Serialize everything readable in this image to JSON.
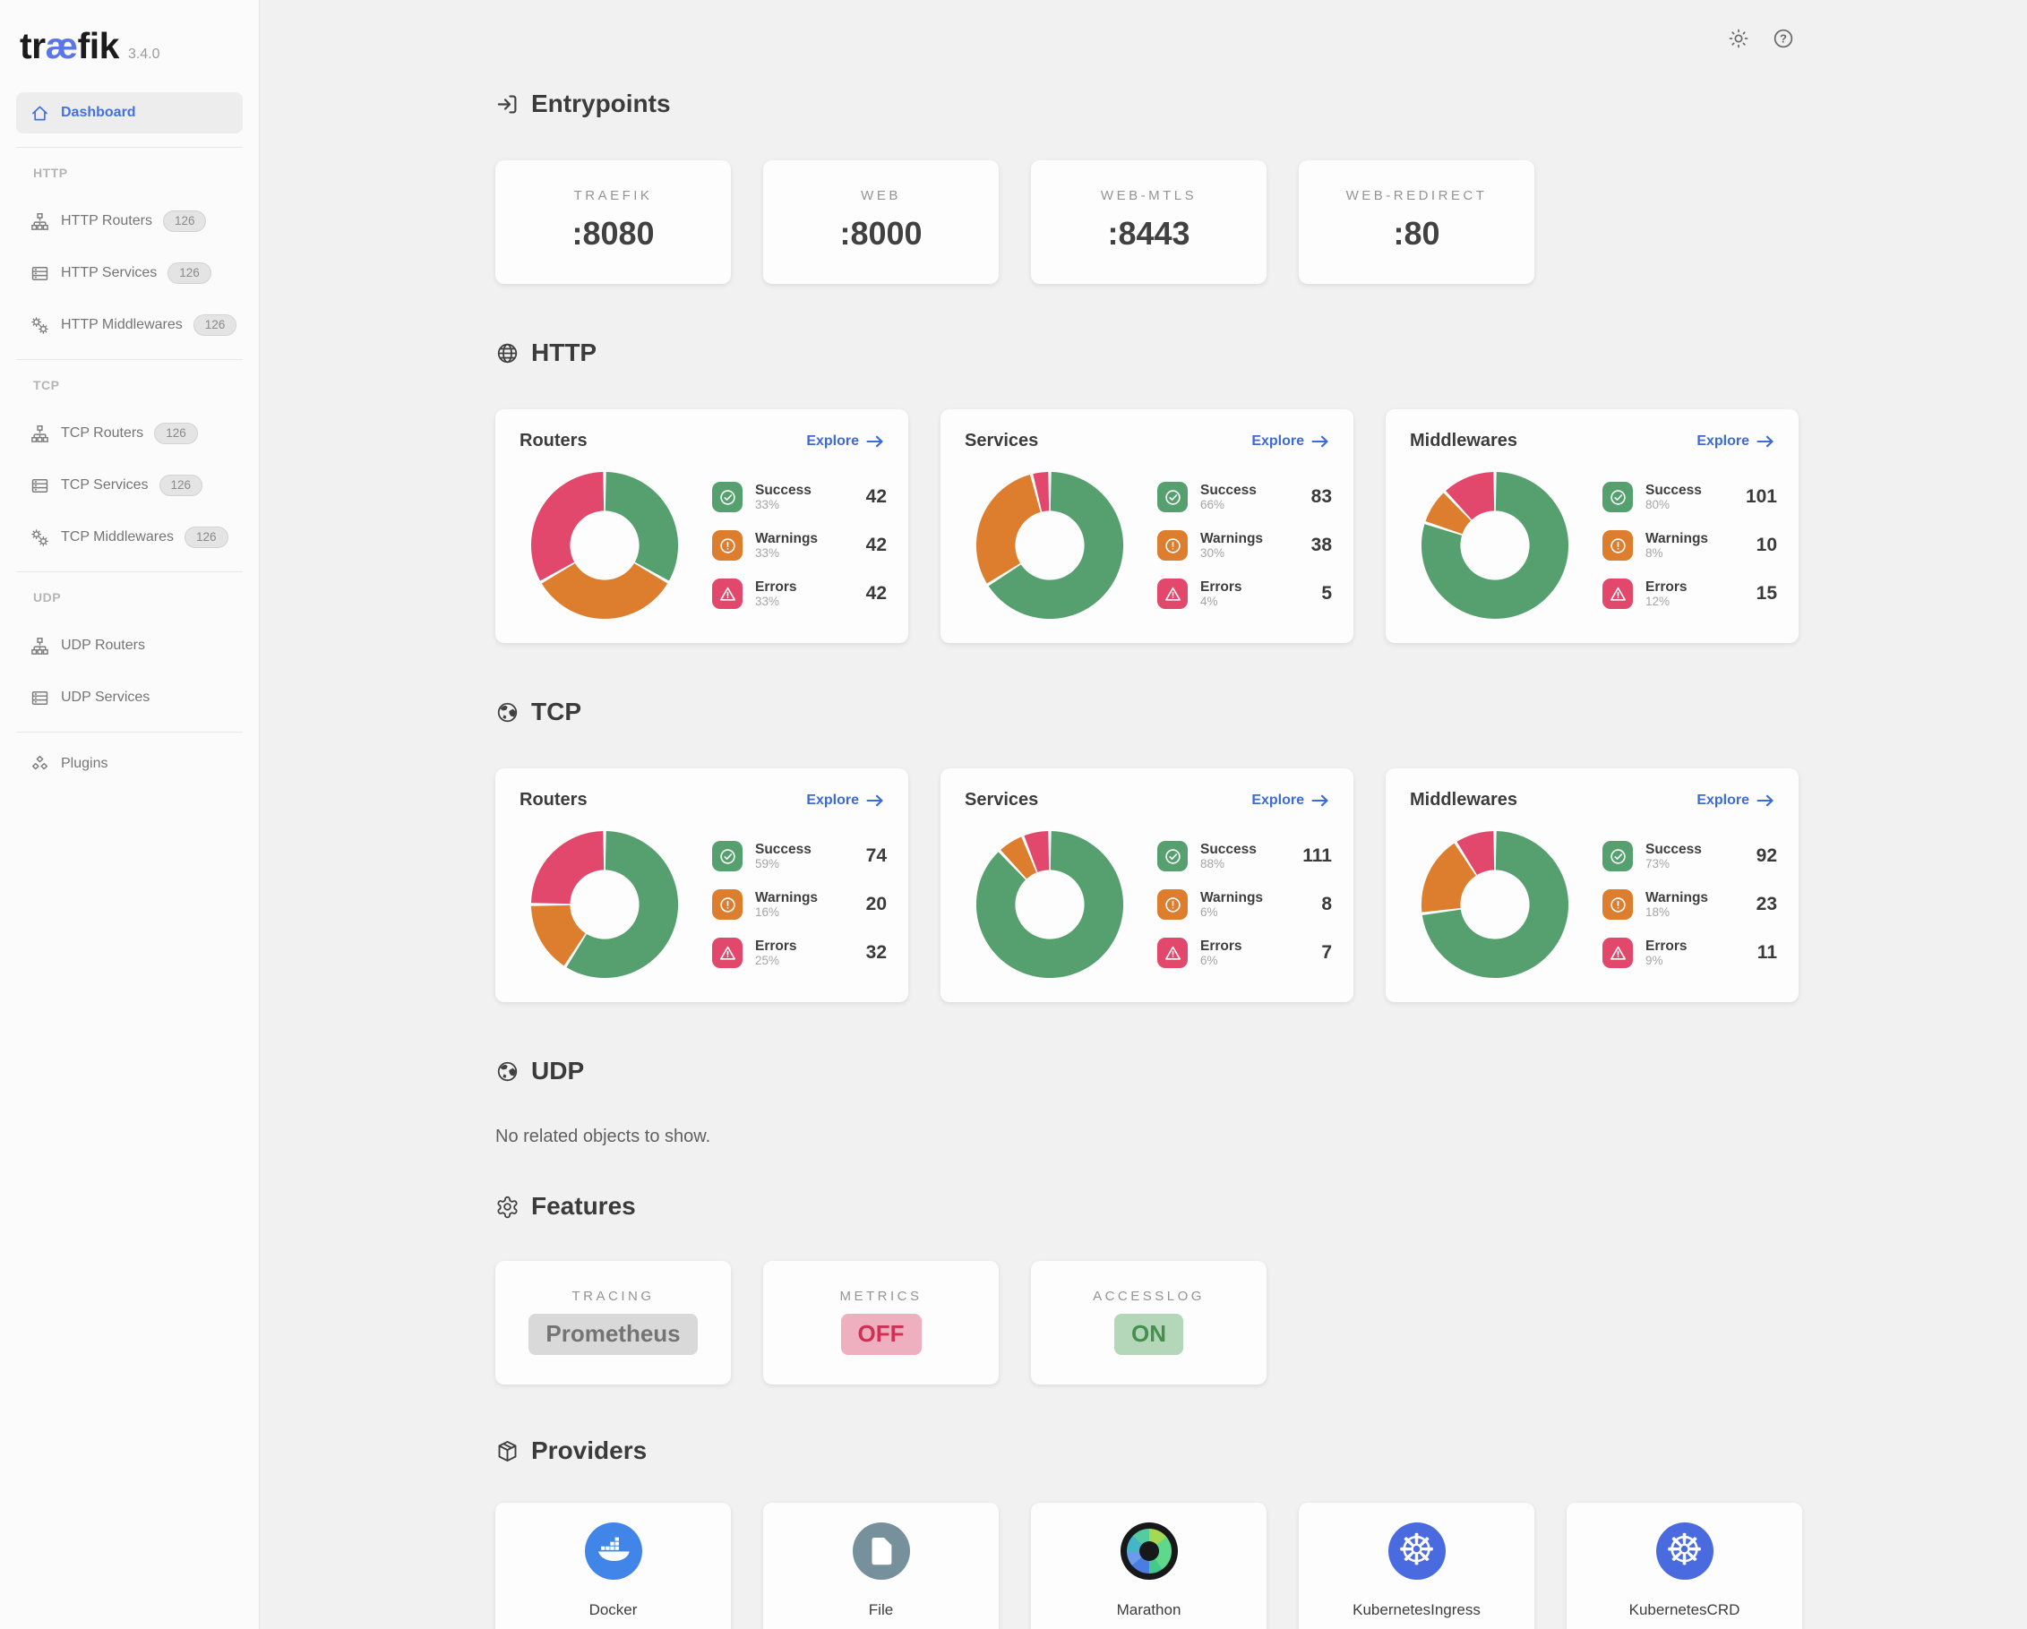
{
  "app": {
    "logo_pre": "tr",
    "logo_ae": "æ",
    "logo_post": "fik",
    "version": "3.4.0"
  },
  "topbar": {
    "icons": [
      "theme-toggle",
      "help"
    ]
  },
  "colors": {
    "accent": "#3c6ad6",
    "logo_ae": "#5b76e8",
    "success": "#55a06e",
    "warning": "#dd7e2f",
    "error": "#e2486b",
    "neutral_badge_bg": "#d9d9d9",
    "neutral_badge_text": "#747474",
    "off_badge_bg": "#eeb0bf",
    "off_badge_text": "#d22f55",
    "on_badge_bg": "#b5d7b9",
    "on_badge_text": "#43914d",
    "docker_blue": "#4285e8",
    "file_slate": "#76909c",
    "kubernetes_blue": "#4a6be0",
    "marathon_black": "#17181a"
  },
  "sidebar": {
    "sections": [
      {
        "label": null,
        "items": [
          {
            "label": "Dashboard",
            "icon": "home",
            "active": true
          }
        ]
      },
      {
        "label": "HTTP",
        "items": [
          {
            "label": "HTTP Routers",
            "icon": "router",
            "badge": "126"
          },
          {
            "label": "HTTP Services",
            "icon": "service",
            "badge": "126"
          },
          {
            "label": "HTTP Middlewares",
            "icon": "middleware",
            "badge": "126"
          }
        ]
      },
      {
        "label": "TCP",
        "items": [
          {
            "label": "TCP Routers",
            "icon": "router",
            "badge": "126"
          },
          {
            "label": "TCP Services",
            "icon": "service",
            "badge": "126"
          },
          {
            "label": "TCP Middlewares",
            "icon": "middleware",
            "badge": "126"
          }
        ]
      },
      {
        "label": "UDP",
        "items": [
          {
            "label": "UDP Routers",
            "icon": "router"
          },
          {
            "label": "UDP Services",
            "icon": "service"
          }
        ]
      },
      {
        "label": null,
        "items": [
          {
            "label": "Plugins",
            "icon": "plugins"
          }
        ]
      }
    ]
  },
  "entrypoints": {
    "title": "Entrypoints",
    "icon": "entrypoints",
    "cards": [
      {
        "label": "TRAEFIK",
        "value": ":8080"
      },
      {
        "label": "WEB",
        "value": ":8000"
      },
      {
        "label": "WEB-MTLS",
        "value": ":8443"
      },
      {
        "label": "WEB-REDIRECT",
        "value": ":80"
      }
    ]
  },
  "protocol_sections": [
    {
      "id": "http",
      "title": "HTTP",
      "icon": "globe-wire",
      "cards": [
        {
          "title": "Routers",
          "explore_label": "Explore",
          "chart_index": 0,
          "rows": [
            {
              "name": "Success",
              "pct": "33%",
              "value": "42"
            },
            {
              "name": "Warnings",
              "pct": "33%",
              "value": "42"
            },
            {
              "name": "Errors",
              "pct": "33%",
              "value": "42"
            }
          ]
        },
        {
          "title": "Services",
          "explore_label": "Explore",
          "chart_index": 1,
          "rows": [
            {
              "name": "Success",
              "pct": "66%",
              "value": "83"
            },
            {
              "name": "Warnings",
              "pct": "30%",
              "value": "38"
            },
            {
              "name": "Errors",
              "pct": "4%",
              "value": "5"
            }
          ]
        },
        {
          "title": "Middlewares",
          "explore_label": "Explore",
          "chart_index": 2,
          "rows": [
            {
              "name": "Success",
              "pct": "80%",
              "value": "101"
            },
            {
              "name": "Warnings",
              "pct": "8%",
              "value": "10"
            },
            {
              "name": "Errors",
              "pct": "12%",
              "value": "15"
            }
          ]
        }
      ]
    },
    {
      "id": "tcp",
      "title": "TCP",
      "icon": "globe-earth",
      "cards": [
        {
          "title": "Routers",
          "explore_label": "Explore",
          "chart_index": 3,
          "rows": [
            {
              "name": "Success",
              "pct": "59%",
              "value": "74"
            },
            {
              "name": "Warnings",
              "pct": "16%",
              "value": "20"
            },
            {
              "name": "Errors",
              "pct": "25%",
              "value": "32"
            }
          ]
        },
        {
          "title": "Services",
          "explore_label": "Explore",
          "chart_index": 4,
          "rows": [
            {
              "name": "Success",
              "pct": "88%",
              "value": "111"
            },
            {
              "name": "Warnings",
              "pct": "6%",
              "value": "8"
            },
            {
              "name": "Errors",
              "pct": "6%",
              "value": "7"
            }
          ]
        },
        {
          "title": "Middlewares",
          "explore_label": "Explore",
          "chart_index": 5,
          "rows": [
            {
              "name": "Success",
              "pct": "73%",
              "value": "92"
            },
            {
              "name": "Warnings",
              "pct": "18%",
              "value": "23"
            },
            {
              "name": "Errors",
              "pct": "9%",
              "value": "11"
            }
          ]
        }
      ]
    },
    {
      "id": "udp",
      "title": "UDP",
      "icon": "globe-earth",
      "empty_text": "No related objects to show.",
      "cards": []
    }
  ],
  "chart_data": [
    {
      "type": "pie",
      "section": "HTTP",
      "title": "Routers",
      "labels": [
        "Success",
        "Warnings",
        "Errors"
      ],
      "percents": [
        33,
        33,
        33
      ],
      "values": [
        42,
        42,
        42
      ],
      "colors": [
        "#55a06e",
        "#dd7e2f",
        "#e2486b"
      ]
    },
    {
      "type": "pie",
      "section": "HTTP",
      "title": "Services",
      "labels": [
        "Success",
        "Warnings",
        "Errors"
      ],
      "percents": [
        66,
        30,
        4
      ],
      "values": [
        83,
        38,
        5
      ],
      "colors": [
        "#55a06e",
        "#dd7e2f",
        "#e2486b"
      ]
    },
    {
      "type": "pie",
      "section": "HTTP",
      "title": "Middlewares",
      "labels": [
        "Success",
        "Warnings",
        "Errors"
      ],
      "percents": [
        80,
        8,
        12
      ],
      "values": [
        101,
        10,
        15
      ],
      "colors": [
        "#55a06e",
        "#dd7e2f",
        "#e2486b"
      ]
    },
    {
      "type": "pie",
      "section": "TCP",
      "title": "Routers",
      "labels": [
        "Success",
        "Warnings",
        "Errors"
      ],
      "percents": [
        59,
        16,
        25
      ],
      "values": [
        74,
        20,
        32
      ],
      "colors": [
        "#55a06e",
        "#dd7e2f",
        "#e2486b"
      ]
    },
    {
      "type": "pie",
      "section": "TCP",
      "title": "Services",
      "labels": [
        "Success",
        "Warnings",
        "Errors"
      ],
      "percents": [
        88,
        6,
        6
      ],
      "values": [
        111,
        8,
        7
      ],
      "colors": [
        "#55a06e",
        "#dd7e2f",
        "#e2486b"
      ]
    },
    {
      "type": "pie",
      "section": "TCP",
      "title": "Middlewares",
      "labels": [
        "Success",
        "Warnings",
        "Errors"
      ],
      "percents": [
        73,
        18,
        9
      ],
      "values": [
        92,
        23,
        11
      ],
      "colors": [
        "#55a06e",
        "#dd7e2f",
        "#e2486b"
      ]
    }
  ],
  "features": {
    "title": "Features",
    "icon": "gear",
    "cards": [
      {
        "label": "TRACING",
        "value": "Prometheus",
        "style": "neutral"
      },
      {
        "label": "METRICS",
        "value": "OFF",
        "style": "off"
      },
      {
        "label": "ACCESSLOG",
        "value": "ON",
        "style": "on"
      }
    ]
  },
  "providers": {
    "title": "Providers",
    "icon": "package",
    "cards": [
      {
        "label": "Docker",
        "icon": "docker"
      },
      {
        "label": "File",
        "icon": "file"
      },
      {
        "label": "Marathon",
        "icon": "marathon"
      },
      {
        "label": "KubernetesIngress",
        "icon": "kubernetes"
      },
      {
        "label": "KubernetesCRD",
        "icon": "kubernetes"
      }
    ]
  }
}
